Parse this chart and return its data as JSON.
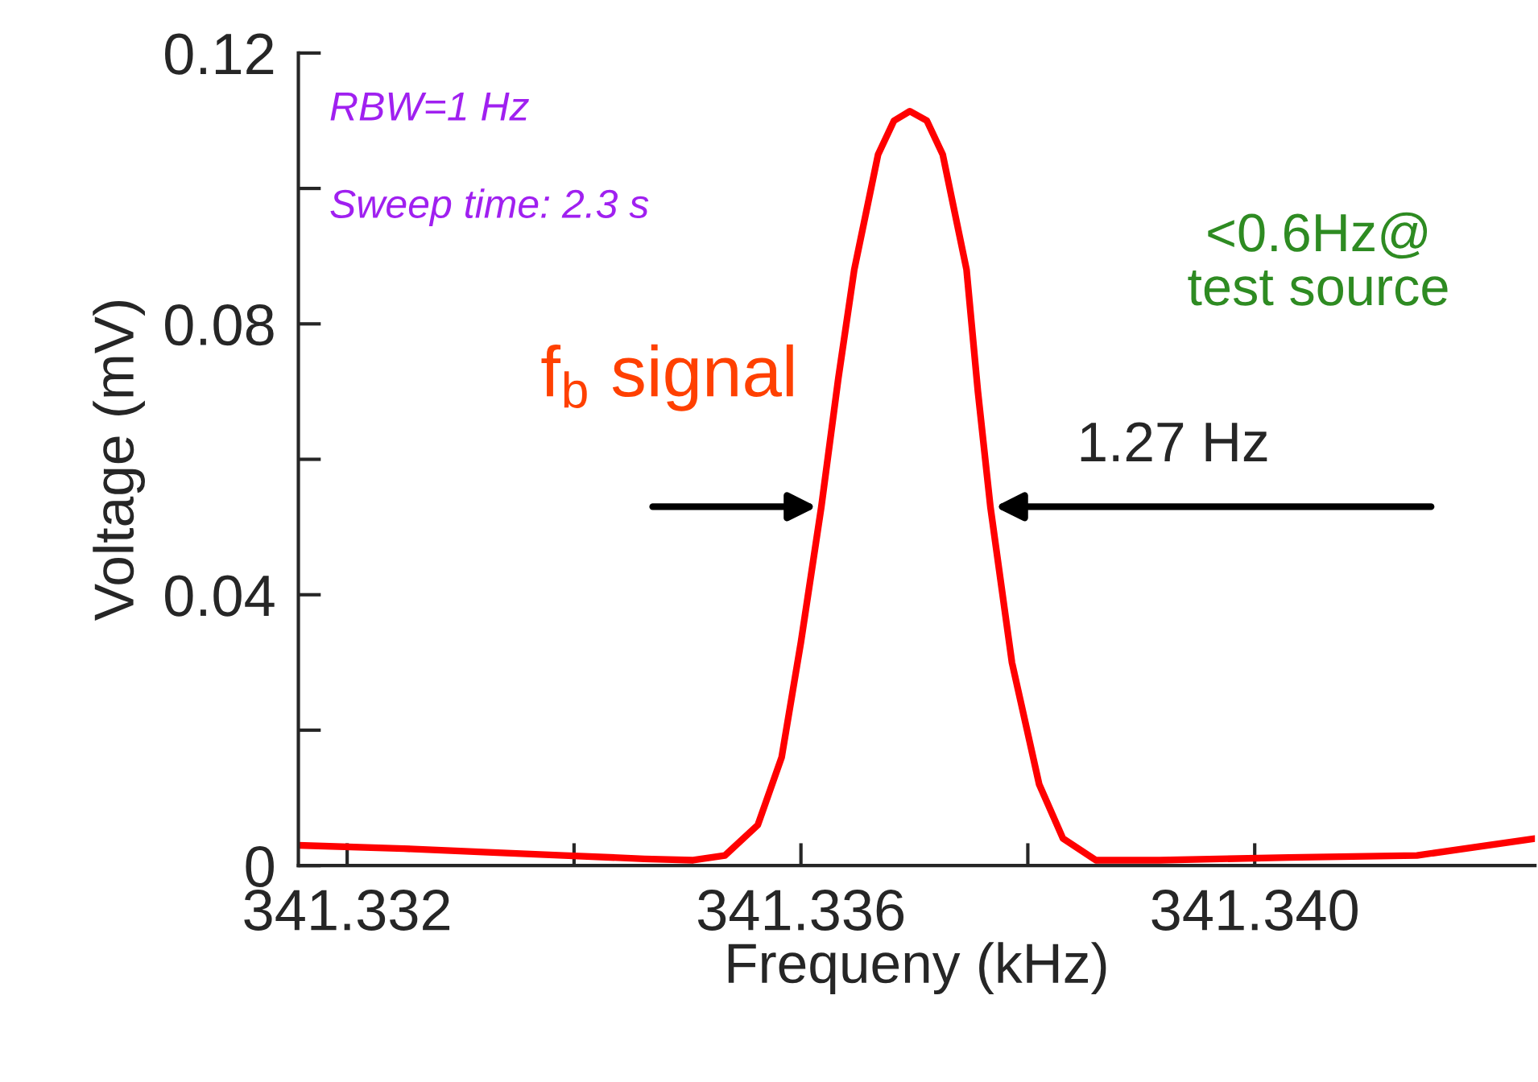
{
  "chart_data": {
    "type": "line",
    "xlabel": "Frequeny (kHz)",
    "ylabel": "Voltage (mV)",
    "x": [
      341.33157,
      341.3325,
      341.3332,
      341.33391,
      341.33462,
      341.33505,
      341.33533,
      341.33562,
      341.33583,
      341.336,
      341.33618,
      341.33633,
      341.33647,
      341.33668,
      341.33682,
      341.33696,
      341.33711,
      341.33725,
      341.33746,
      341.33756,
      341.33767,
      341.33786,
      341.3381,
      341.33831,
      341.3386,
      341.33916,
      341.3403,
      341.34143,
      341.34247
    ],
    "series": [
      {
        "color": "#ff0000",
        "values": [
          0.003,
          0.0025,
          0.002,
          0.0015,
          0.001,
          0.0008,
          0.0015,
          0.006,
          0.016,
          0.033,
          0.053,
          0.072,
          0.088,
          0.105,
          0.11,
          0.1114,
          0.11,
          0.105,
          0.088,
          0.07,
          0.053,
          0.03,
          0.012,
          0.004,
          0.0008,
          0.0008,
          0.0012,
          0.0015,
          0.004
        ]
      }
    ],
    "xlim": [
      341.33157,
      341.34247
    ],
    "ylim": [
      0,
      0.12
    ],
    "xticks": [
      {
        "value": 341.332,
        "label": "341.332"
      },
      {
        "value": 341.334,
        "label": null
      },
      {
        "value": 341.336,
        "label": "341.336"
      },
      {
        "value": 341.338,
        "label": null
      },
      {
        "value": 341.34,
        "label": "341.340"
      }
    ],
    "yticks": [
      0,
      {
        "value": 0.02,
        "label": null
      },
      0.04,
      {
        "value": 0.06,
        "label": null
      },
      0.08,
      {
        "value": 0.1,
        "label": null
      },
      0.12
    ],
    "annotations": [
      "RBW=1 Hz",
      "Sweep time: 2.3 s",
      "<0.6Hz@\ntest source",
      "f$_{b}$ signal",
      {
        "text": "1.27 Hz",
        "x": 341.33767,
        "y": 0.053
      }
    ],
    "grid": false,
    "legend": false
  }
}
